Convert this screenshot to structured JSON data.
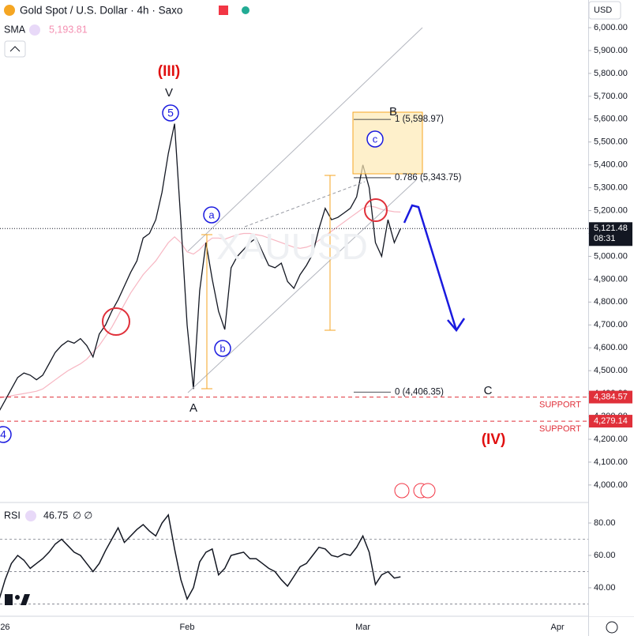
{
  "header": {
    "title": "Gold Spot / U.S. Dollar · 4h · Saxo",
    "currency": "USD",
    "sma_value": {
      "value": 5193.81,
      "label": "5,193.81"
    }
  },
  "chart_data": [
    {
      "type": "line",
      "categories": [
        null,
        "26",
        null,
        null,
        null,
        null,
        null,
        null,
        null,
        null,
        null,
        null,
        null,
        null,
        null,
        null,
        null,
        null,
        null,
        null,
        null,
        null,
        null,
        null,
        null,
        null,
        null,
        null,
        null,
        null,
        "Feb",
        null,
        null,
        null,
        null,
        null,
        null,
        null,
        null,
        null,
        null,
        null,
        null,
        null,
        null,
        null,
        null,
        null,
        null,
        null,
        null,
        null,
        null,
        null,
        null,
        null,
        null,
        null,
        "Mar",
        null,
        null,
        null,
        null,
        null,
        null,
        null,
        null,
        null,
        null,
        null,
        null,
        null,
        null,
        null,
        null,
        null,
        null,
        null,
        null,
        null,
        null,
        null,
        null,
        null,
        null,
        null,
        null,
        null,
        null,
        "Apr",
        null,
        null,
        null,
        null
      ],
      "series": [
        {
          "name": "XAUUSD",
          "color": "#131722",
          "values": [
            4320,
            4370,
            4420,
            4470,
            4490,
            4480,
            4460,
            4480,
            4530,
            4580,
            4610,
            4630,
            4620,
            4640,
            4610,
            4560,
            4660,
            4700,
            4760,
            4810,
            4870,
            4930,
            4980,
            5080,
            5100,
            5160,
            5280,
            5450,
            5580,
            5150,
            4700,
            4420,
            4850,
            5060,
            4900,
            4760,
            4680,
            4950,
            5000,
            5030,
            5060,
            5080,
            5020,
            4960,
            4950,
            4970,
            4890,
            4860,
            4920,
            4960,
            5010,
            5120,
            5210,
            5160,
            5170,
            5190,
            5210,
            5260,
            5400,
            5300,
            5060,
            5000,
            5160,
            5060,
            5121.48,
            null,
            null,
            null,
            null,
            null,
            null,
            null,
            null,
            null,
            null,
            null,
            null,
            null,
            null,
            null,
            null,
            null,
            null,
            null,
            null,
            null,
            null,
            null,
            null,
            null,
            null,
            null,
            null,
            null
          ]
        },
        {
          "name": "SMA",
          "color": "#f7b6c2",
          "values": [
            4380,
            4385,
            4390,
            4395,
            4400,
            4405,
            4410,
            4420,
            4440,
            4460,
            4480,
            4500,
            4515,
            4530,
            4550,
            4580,
            4610,
            4650,
            4690,
            4740,
            4790,
            4840,
            4880,
            4920,
            4950,
            4980,
            5020,
            5060,
            5085,
            5060,
            5020,
            5010,
            5030,
            5060,
            5080,
            5080,
            5075,
            5085,
            5095,
            5100,
            5100,
            5095,
            5090,
            5080,
            5070,
            5060,
            5050,
            5040,
            5035,
            5040,
            5050,
            5070,
            5090,
            5110,
            5130,
            5150,
            5170,
            5190,
            5210,
            5220,
            5215,
            5205,
            5200,
            5195,
            5193.81,
            null,
            null,
            null,
            null,
            null,
            null,
            null,
            null,
            null,
            null,
            null,
            null,
            null,
            null,
            null,
            null,
            null,
            null,
            null,
            null,
            null,
            null,
            null,
            null,
            null,
            null,
            null,
            null,
            null
          ]
        }
      ],
      "ylim": [
        3927,
        6121
      ],
      "yticks": [
        {
          "value": 4000,
          "label": "4,000.00"
        },
        {
          "value": 4100,
          "label": "4,100.00"
        },
        {
          "value": 4200,
          "label": "4,200.00"
        },
        {
          "value": 4300,
          "label": "4,300.00"
        },
        {
          "value": 4400,
          "label": "4,400.00"
        },
        {
          "value": 4500,
          "label": "4,500.00"
        },
        {
          "value": 4600,
          "label": "4,600.00"
        },
        {
          "value": 4700,
          "label": "4,700.00"
        },
        {
          "value": 4800,
          "label": "4,800.00"
        },
        {
          "value": 4900,
          "label": "4,900.00"
        },
        {
          "value": 5000,
          "label": "5,000.00"
        },
        {
          "value": 5100,
          "label": "5,100.00"
        },
        {
          "value": 5200,
          "label": "5,200.00"
        },
        {
          "value": 5300,
          "label": "5,300.00"
        },
        {
          "value": 5400,
          "label": "5,400.00"
        },
        {
          "value": 5500,
          "label": "5,500.00"
        },
        {
          "value": 5600,
          "label": "5,600.00"
        },
        {
          "value": 5700,
          "label": "5,700.00"
        },
        {
          "value": 5800,
          "label": "5,800.00"
        },
        {
          "value": 5900,
          "label": "5,900.00"
        },
        {
          "value": 6000,
          "label": "6,000.00"
        }
      ],
      "last_price": {
        "value": 5121.48,
        "label": "5,121.48"
      },
      "countdown": "08:31",
      "fib_levels": [
        {
          "value": 5598.97,
          "label": "1 (5,598.97)"
        },
        {
          "value": 5343.75,
          "label": "0.786 (5,343.75)"
        },
        {
          "value": 4406.35,
          "label": "0 (4,406.35)"
        }
      ],
      "supports": [
        {
          "value": 4384.57,
          "label": "4,384.57",
          "text": "SUPPORT"
        },
        {
          "value": 4279.14,
          "label": "4,279.14",
          "text": "SUPPORT"
        }
      ],
      "annotations": [
        {
          "text": "(III)",
          "color": "#e01010"
        },
        {
          "text": "V",
          "color": "#131722"
        },
        {
          "text": "5",
          "color": "#1a1adf",
          "circled": true
        },
        {
          "text": "a",
          "color": "#1a1adf",
          "circled": true
        },
        {
          "text": "b",
          "color": "#1a1adf",
          "circled": true
        },
        {
          "text": "A",
          "color": "#131722"
        },
        {
          "text": "B",
          "color": "#131722"
        },
        {
          "text": "c",
          "color": "#1a1adf",
          "circled": true
        },
        {
          "text": "C",
          "color": "#131722"
        },
        {
          "text": "(IV)",
          "color": "#e01010"
        },
        {
          "text": "4",
          "color": "#1a1adf",
          "circled": true
        }
      ]
    },
    {
      "type": "line",
      "series": [
        {
          "name": "RSI",
          "color": "#131722",
          "values": [
            32,
            45,
            55,
            60,
            57,
            52,
            55,
            58,
            62,
            67,
            70,
            66,
            62,
            60,
            55,
            50,
            55,
            63,
            70,
            77,
            68,
            72,
            76,
            79,
            75,
            72,
            80,
            85,
            64,
            45,
            33,
            40,
            56,
            62,
            64,
            48,
            52,
            60,
            61,
            62,
            58,
            58,
            55,
            52,
            50,
            45,
            41,
            47,
            53,
            55,
            60,
            65,
            64,
            60,
            59,
            61,
            60,
            65,
            72,
            62,
            42,
            48,
            50,
            46,
            46.75,
            null,
            null,
            null,
            null,
            null,
            null,
            null,
            null,
            null,
            null,
            null,
            null,
            null,
            null,
            null,
            null,
            null,
            null,
            null,
            null,
            null,
            null,
            null,
            null,
            null,
            null,
            null,
            null,
            null
          ]
        }
      ],
      "ylim": [
        22.4,
        92.2
      ],
      "yticks": [
        {
          "value": 40,
          "label": "40.00"
        },
        {
          "value": 60,
          "label": "60.00"
        },
        {
          "value": 80,
          "label": "80.00"
        }
      ],
      "levels": [
        70,
        50,
        30
      ],
      "params": "∅ ∅"
    }
  ]
}
